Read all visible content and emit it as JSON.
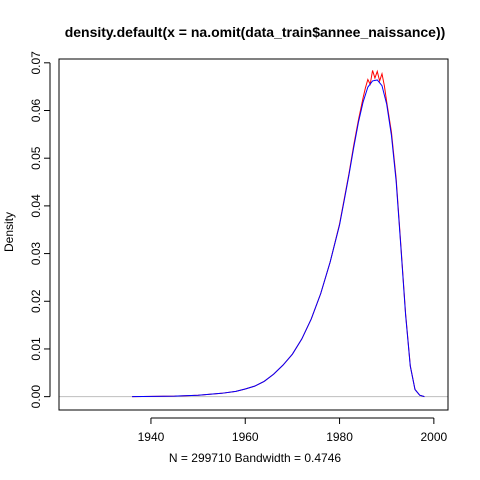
{
  "chart_data": {
    "type": "line",
    "title": "density.default(x = na.omit(data_train$annee_naissance))",
    "xlabel": "N = 299710   Bandwidth = 0.4746",
    "ylabel": "Density",
    "xlim": [
      1920.5,
      2003
    ],
    "ylim": [
      -0.0028,
      0.0708
    ],
    "x_ticks": [
      1940,
      1960,
      1980,
      2000
    ],
    "x_tick_labels": [
      "1940",
      "1960",
      "1980",
      "2000"
    ],
    "y_ticks": [
      0.0,
      0.01,
      0.02,
      0.03,
      0.04,
      0.05,
      0.06,
      0.07
    ],
    "y_tick_labels": [
      "0.00",
      "0.01",
      "0.02",
      "0.03",
      "0.04",
      "0.05",
      "0.06",
      "0.07"
    ],
    "zero_line": true,
    "grid": false,
    "series": [
      {
        "color": "#ff0000",
        "x": [
          1936,
          1945,
          1950,
          1955,
          1958,
          1960,
          1962,
          1964,
          1966,
          1968,
          1970,
          1972,
          1974,
          1976,
          1978,
          1980,
          1981,
          1982,
          1983,
          1984,
          1985,
          1985.5,
          1986,
          1986.5,
          1987,
          1987.5,
          1988,
          1988.5,
          1989,
          1989.5,
          1990,
          1991,
          1992,
          1993,
          1994,
          1995,
          1996,
          1997,
          1998
        ],
        "y": [
          0,
          0.0001,
          0.0003,
          0.0007,
          0.0011,
          0.0016,
          0.0022,
          0.0032,
          0.0047,
          0.0066,
          0.0089,
          0.0121,
          0.0163,
          0.0216,
          0.0282,
          0.0362,
          0.0415,
          0.0468,
          0.0527,
          0.058,
          0.0627,
          0.0648,
          0.0665,
          0.0655,
          0.0684,
          0.0668,
          0.0682,
          0.0662,
          0.0677,
          0.0652,
          0.0618,
          0.0555,
          0.0458,
          0.0318,
          0.0175,
          0.0065,
          0.0015,
          0.0003,
          0
        ]
      },
      {
        "color": "#0000ff",
        "x": [
          1936,
          1945,
          1950,
          1955,
          1958,
          1960,
          1962,
          1964,
          1966,
          1968,
          1970,
          1972,
          1974,
          1976,
          1978,
          1980,
          1981,
          1982,
          1983,
          1984,
          1985,
          1986,
          1987,
          1988,
          1989,
          1990,
          1991,
          1992,
          1993,
          1994,
          1995,
          1996,
          1997,
          1998
        ],
        "y": [
          0,
          0.0001,
          0.0003,
          0.0007,
          0.0011,
          0.0016,
          0.0022,
          0.0032,
          0.0047,
          0.0066,
          0.0089,
          0.0121,
          0.0163,
          0.0216,
          0.0282,
          0.036,
          0.0412,
          0.0465,
          0.0522,
          0.0575,
          0.0618,
          0.0649,
          0.0662,
          0.0664,
          0.0652,
          0.0613,
          0.0548,
          0.0452,
          0.0314,
          0.0172,
          0.0064,
          0.0015,
          0.0003,
          0
        ]
      }
    ]
  }
}
